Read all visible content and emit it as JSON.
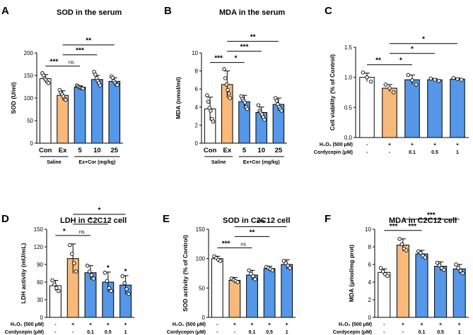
{
  "colors": {
    "control": "#ffffff",
    "model": "#f9b97a",
    "treated": "#5597e8",
    "edge": "#000000",
    "point": "#ffffff"
  },
  "panels": [
    {
      "label": "A",
      "title": "SOD in the serum",
      "ylabel": "SOD (U/ml)",
      "ylim": [
        0,
        200
      ],
      "yticks": [
        0,
        50,
        100,
        150,
        200
      ],
      "xstyle": "cats",
      "categories": [
        "Con",
        "Ex",
        "5",
        "10",
        "25"
      ],
      "groups": [
        "Saline",
        "Ex+Cor (mg/kg)"
      ],
      "chart_data": {
        "type": "bar",
        "title": "SOD in the serum",
        "ylabel": "SOD (U/ml)",
        "categories": [
          "Con",
          "Ex",
          "5",
          "10",
          "25"
        ],
        "values": [
          143,
          106,
          124,
          141,
          137
        ],
        "errors": [
          9,
          10,
          3,
          9,
          8
        ],
        "points": [
          [
            155,
            150,
            143,
            140,
            136,
            133
          ],
          [
            118,
            112,
            108,
            104,
            98,
            96
          ],
          [
            128,
            126,
            124,
            123,
            122,
            121
          ],
          [
            158,
            152,
            144,
            138,
            133,
            128
          ],
          [
            148,
            145,
            138,
            134,
            130,
            129
          ]
        ]
      },
      "sig": [
        {
          "a": 0,
          "b": 1,
          "t": "***",
          "lvl": 0
        },
        {
          "a": 1,
          "b": 2,
          "t": "ns",
          "lvl": 0
        },
        {
          "a": 1,
          "b": 3,
          "t": "***",
          "lvl": 1
        },
        {
          "a": 1,
          "b": 4,
          "t": "**",
          "lvl": 2
        }
      ],
      "stars": []
    },
    {
      "label": "B",
      "title": "MDA in the serum",
      "ylabel": "MDA (nmol/ml)",
      "ylim": [
        0,
        10
      ],
      "yticks": [
        0,
        2,
        4,
        6,
        8,
        10
      ],
      "xstyle": "cats",
      "categories": [
        "Con",
        "Ex",
        "5",
        "10",
        "25"
      ],
      "groups": [
        "Saline",
        "Ex+Cor (mg/kg)"
      ],
      "chart_data": {
        "type": "bar",
        "title": "MDA in the serum",
        "ylabel": "MDA (nmol/ml)",
        "categories": [
          "Con",
          "Ex",
          "5",
          "10",
          "25"
        ],
        "values": [
          3.8,
          6.5,
          4.6,
          3.4,
          4.3
        ],
        "errors": [
          1.3,
          1.5,
          0.7,
          0.6,
          0.7
        ],
        "points": [
          [
            5.3,
            4.6,
            3.9,
            3.6,
            2.7,
            2.4
          ],
          [
            8.2,
            7.2,
            6.5,
            5.9,
            5.5,
            5.0
          ],
          [
            5.2,
            4.9,
            4.7,
            4.5,
            4.0,
            3.8
          ],
          [
            4.2,
            3.6,
            3.4,
            3.2,
            2.9,
            2.6
          ],
          [
            5.0,
            4.7,
            4.3,
            4.0,
            3.8,
            3.6
          ]
        ]
      },
      "sig": [
        {
          "a": 0,
          "b": 1,
          "t": "***",
          "lvl": 0
        },
        {
          "a": 1,
          "b": 2,
          "t": "*",
          "lvl": 0
        },
        {
          "a": 1,
          "b": 3,
          "t": "***",
          "lvl": 1
        },
        {
          "a": 1,
          "b": 4,
          "t": "**",
          "lvl": 2
        }
      ],
      "stars": []
    },
    {
      "label": "C",
      "title": "",
      "ylabel": "Cell viability (% of Control)",
      "ylim": [
        0,
        1.5
      ],
      "yticks": [
        0.0,
        0.5,
        1.0,
        1.5
      ],
      "ydec": 1,
      "xstyle": "treat",
      "h2o2": [
        "-",
        "+",
        "+",
        "+",
        "+"
      ],
      "cordy": [
        "-",
        "-",
        "0.1",
        "0.5",
        "1"
      ],
      "chart_data": {
        "type": "bar",
        "ylabel": "Cell viability (% of Control)",
        "categories": [
          "Control",
          "H2O2",
          "H2O2+Cordycepin 0.1",
          "H2O2+Cordycepin 0.5",
          "H2O2+Cordycepin 1"
        ],
        "values": [
          1.0,
          0.82,
          0.96,
          0.96,
          0.97
        ],
        "errors": [
          0.07,
          0.06,
          0.08,
          0.02,
          0.02
        ],
        "points": [
          [
            1.08,
            1.0,
            0.93
          ],
          [
            0.88,
            0.82,
            0.75
          ],
          [
            1.04,
            0.95,
            0.88
          ],
          [
            0.98,
            0.96,
            0.94
          ],
          [
            0.99,
            0.97,
            0.96
          ]
        ]
      },
      "sig": [
        {
          "a": 0,
          "b": 1,
          "t": "**",
          "lvl": 0
        },
        {
          "a": 1,
          "b": 2,
          "t": "*",
          "lvl": 0
        },
        {
          "a": 1,
          "b": 3,
          "t": "*",
          "lvl": 1
        },
        {
          "a": 1,
          "b": 4,
          "t": "*",
          "lvl": 2
        }
      ],
      "stars": []
    },
    {
      "label": "D",
      "title": "LDH in  C2C12 cell",
      "ylabel": "LDH activity (mU/mL)",
      "ylim": [
        0,
        150
      ],
      "yticks": [
        0,
        30,
        60,
        90,
        120,
        150
      ],
      "xstyle": "treat",
      "h2o2": [
        "-",
        "+",
        "+",
        "+",
        "+"
      ],
      "cordy": [
        "-",
        "-",
        "0.1",
        "0.5",
        "1"
      ],
      "chart_data": {
        "type": "bar",
        "title": "LDH in  C2C12 cell",
        "ylabel": "LDH activity (mU/mL)",
        "categories": [
          "Control",
          "H2O2",
          "H2O2+Cordycepin 0.1",
          "H2O2+Cordycepin 0.5",
          "H2O2+Cordycepin 1"
        ],
        "values": [
          54,
          100,
          76,
          60,
          55
        ],
        "errors": [
          9,
          25,
          12,
          17,
          16
        ],
        "points": [
          [
            63,
            56,
            50,
            45
          ],
          [
            123,
            108,
            92,
            78
          ],
          [
            88,
            78,
            72,
            66
          ],
          [
            76,
            62,
            50,
            45
          ],
          [
            70,
            58,
            48,
            40
          ]
        ]
      },
      "sig": [
        {
          "a": 0,
          "b": 1,
          "t": "*",
          "lvl": 0
        },
        {
          "a": 1,
          "b": 2,
          "t": "ns",
          "lvl": 0
        },
        {
          "a": 1,
          "b": 3,
          "t": "*",
          "lvl": 1
        },
        {
          "a": 1,
          "b": 4,
          "t": "*",
          "lvl": 2
        }
      ],
      "stars": [
        {
          "i": 3,
          "t": "*"
        },
        {
          "i": 4,
          "t": "*"
        }
      ]
    },
    {
      "label": "E",
      "title": "SOD in  C2C12 cell",
      "ylabel": "SOD activity (% of Control)",
      "ylim": [
        0,
        150
      ],
      "yticks": [
        0,
        50,
        100,
        150
      ],
      "xstyle": "treat",
      "h2o2": [
        "-",
        "+",
        "+",
        "+",
        "+"
      ],
      "cordy": [
        "-",
        "-",
        "0.1",
        "0.5",
        "1"
      ],
      "chart_data": {
        "type": "bar",
        "title": "SOD in  C2C12 cell",
        "ylabel": "SOD activity (% of Control)",
        "categories": [
          "Control",
          "H2O2",
          "H2O2+Cordycepin 0.1",
          "H2O2+Cordycepin 0.5",
          "H2O2+Cordycepin 1"
        ],
        "values": [
          100,
          63,
          72,
          83,
          90
        ],
        "errors": [
          4,
          5,
          8,
          4,
          8
        ],
        "points": [
          [
            104,
            101,
            98,
            96
          ],
          [
            66,
            64,
            62,
            60
          ],
          [
            80,
            74,
            70,
            65
          ],
          [
            86,
            84,
            82,
            80
          ],
          [
            96,
            92,
            88,
            84
          ]
        ]
      },
      "sig": [
        {
          "a": 0,
          "b": 1,
          "t": "***",
          "lvl": 0
        },
        {
          "a": 1,
          "b": 2,
          "t": "ns",
          "lvl": 0
        },
        {
          "a": 1,
          "b": 3,
          "t": "**",
          "lvl": 1
        },
        {
          "a": 1,
          "b": 4,
          "t": "***",
          "lvl": 2
        }
      ],
      "stars": []
    },
    {
      "label": "F",
      "title": "MDA in  C2C12 cell",
      "ylabel": "MDA (μmol/mg prot)",
      "ylim": [
        0,
        10
      ],
      "yticks": [
        0,
        2,
        4,
        6,
        8,
        10
      ],
      "xstyle": "treat",
      "h2o2": [
        "-",
        "+",
        "+",
        "+",
        "+"
      ],
      "cordy": [
        "-",
        "-",
        "0.1",
        "0.5",
        "1"
      ],
      "chart_data": {
        "type": "bar",
        "title": "MDA in  C2C12 cell",
        "ylabel": "MDA (μmol/mg prot)",
        "categories": [
          "Control",
          "H2O2",
          "H2O2+Cordycepin 0.1",
          "H2O2+Cordycepin 0.5",
          "H2O2+Cordycepin 1"
        ],
        "values": [
          5.1,
          8.2,
          7.2,
          5.8,
          5.5
        ],
        "errors": [
          0.4,
          0.7,
          0.4,
          0.5,
          0.5
        ],
        "points": [
          [
            5.6,
            5.2,
            4.9,
            4.7
          ],
          [
            8.9,
            8.3,
            7.8,
            7.6
          ],
          [
            7.5,
            7.3,
            7.0,
            6.8
          ],
          [
            6.2,
            5.9,
            5.6,
            5.4
          ],
          [
            6.0,
            5.6,
            5.3,
            5.0
          ]
        ]
      },
      "sig": [
        {
          "a": 0,
          "b": 1,
          "t": "***",
          "lvl": 0
        },
        {
          "a": 1,
          "b": 2,
          "t": "***",
          "lvl": 0
        },
        {
          "a": 1,
          "b": 4,
          "t": "***",
          "lvl": 1
        }
      ],
      "stars": []
    }
  ],
  "labels": {
    "h2o2": "H₂O₂ (500 μM)",
    "cordy": "Cordycepin (μM)"
  }
}
